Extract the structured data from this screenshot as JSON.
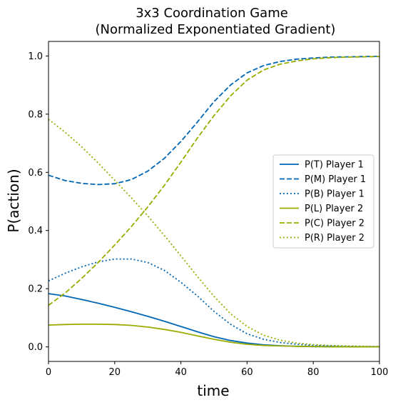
{
  "chart_data": {
    "type": "line",
    "title_line1": "3x3 Coordination Game",
    "title_line2": "(Normalized Exponentiated Gradient)",
    "xlabel": "time",
    "ylabel": "P(action)",
    "xlim": [
      0,
      100
    ],
    "ylim": [
      -0.05,
      1.05
    ],
    "xticks": [
      0,
      20,
      40,
      60,
      80,
      100
    ],
    "xtick_labels": [
      "0",
      "20",
      "40",
      "60",
      "80",
      "100"
    ],
    "yticks": [
      0.0,
      0.2,
      0.4,
      0.6,
      0.8,
      1.0
    ],
    "ytick_labels": [
      "0.0",
      "0.2",
      "0.4",
      "0.6",
      "0.8",
      "1.0"
    ],
    "grid": false,
    "legend_position": "center-right",
    "x": [
      0,
      5,
      10,
      15,
      20,
      25,
      30,
      35,
      40,
      45,
      50,
      55,
      60,
      65,
      70,
      75,
      80,
      85,
      90,
      95,
      100
    ],
    "series": [
      {
        "name": "P(T) Player 1",
        "color": "#0066b3",
        "dash": "solid",
        "values": [
          0.183,
          0.175,
          0.163,
          0.15,
          0.136,
          0.121,
          0.105,
          0.088,
          0.07,
          0.052,
          0.035,
          0.022,
          0.013,
          0.007,
          0.004,
          0.002,
          0.001,
          0.001,
          0.0,
          0.0,
          0.0
        ]
      },
      {
        "name": "P(M) Player 1",
        "color": "#0066b3",
        "dash": "dashed",
        "values": [
          0.59,
          0.572,
          0.562,
          0.558,
          0.561,
          0.575,
          0.604,
          0.648,
          0.706,
          0.773,
          0.843,
          0.9,
          0.942,
          0.967,
          0.981,
          0.989,
          0.993,
          0.996,
          0.997,
          0.998,
          0.999
        ]
      },
      {
        "name": "P(B) Player 1",
        "color": "#0066b3",
        "dash": "dotted",
        "values": [
          0.227,
          0.253,
          0.275,
          0.292,
          0.302,
          0.302,
          0.29,
          0.263,
          0.222,
          0.175,
          0.122,
          0.078,
          0.045,
          0.026,
          0.015,
          0.009,
          0.005,
          0.003,
          0.002,
          0.001,
          0.001
        ]
      },
      {
        "name": "P(L) Player 2",
        "color": "#9aac00",
        "dash": "solid",
        "values": [
          0.075,
          0.077,
          0.078,
          0.078,
          0.077,
          0.074,
          0.068,
          0.06,
          0.05,
          0.038,
          0.026,
          0.016,
          0.009,
          0.005,
          0.003,
          0.002,
          0.001,
          0.0,
          0.0,
          0.0,
          0.0
        ]
      },
      {
        "name": "P(C) Player 2",
        "color": "#9aac00",
        "dash": "dashed",
        "values": [
          0.143,
          0.185,
          0.235,
          0.29,
          0.35,
          0.413,
          0.481,
          0.555,
          0.635,
          0.718,
          0.795,
          0.863,
          0.917,
          0.952,
          0.972,
          0.983,
          0.99,
          0.994,
          0.996,
          0.997,
          0.998
        ]
      },
      {
        "name": "P(R) Player 2",
        "color": "#9aac00",
        "dash": "dotted",
        "values": [
          0.782,
          0.738,
          0.688,
          0.632,
          0.573,
          0.513,
          0.45,
          0.383,
          0.313,
          0.242,
          0.174,
          0.114,
          0.07,
          0.04,
          0.023,
          0.013,
          0.008,
          0.005,
          0.003,
          0.002,
          0.001
        ]
      }
    ]
  }
}
